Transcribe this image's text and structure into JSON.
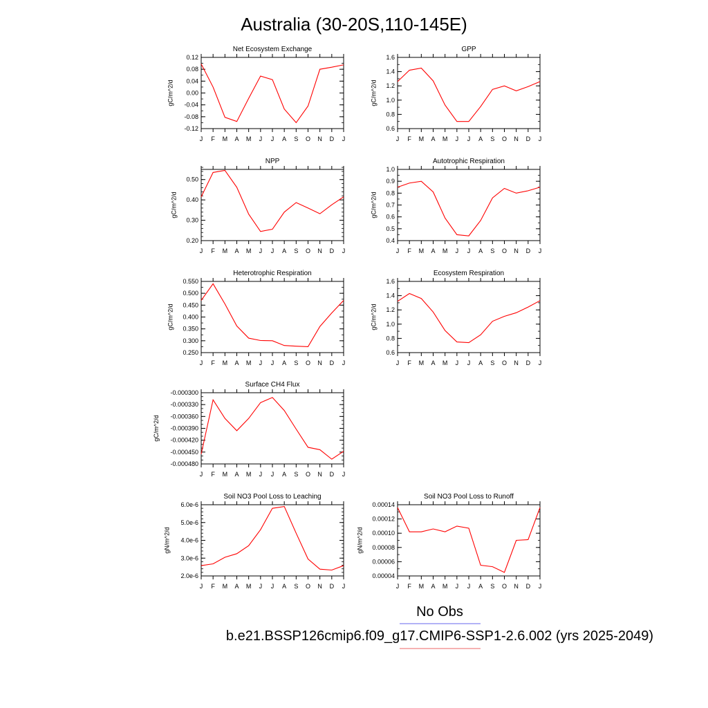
{
  "page": {
    "title": "Australia (30-20S,110-145E)",
    "legend": {
      "items": [
        {
          "label": "No Obs",
          "color": "#6666ee"
        },
        {
          "label": "b.e21.BSSP126cmip6.f09_g17.CMIP6-SSP1-2.6.002 (yrs 2025-2049)",
          "color": "#ee6666"
        }
      ]
    }
  },
  "chart_data": [
    {
      "type": "line",
      "title": "Net Ecosystem Exchange",
      "xlabel": "",
      "ylabel": "gC/m^2/d",
      "categories": [
        "J",
        "F",
        "M",
        "A",
        "M",
        "J",
        "J",
        "A",
        "S",
        "O",
        "N",
        "D",
        "J"
      ],
      "ylim": [
        -0.12,
        0.12
      ],
      "yticks": [
        -0.12,
        -0.08,
        -0.04,
        0.0,
        0.04,
        0.08,
        0.12
      ],
      "ytick_labels": [
        "-0.12",
        "-0.08",
        "-0.04",
        "0.00",
        "0.04",
        "0.08",
        "0.12"
      ],
      "minor_step": 0.02,
      "series": [
        {
          "color": "#ff0000",
          "values": [
            0.098,
            0.02,
            -0.082,
            -0.096,
            -0.018,
            0.057,
            0.045,
            -0.054,
            -0.1,
            -0.044,
            0.08,
            0.087,
            0.095
          ]
        }
      ]
    },
    {
      "type": "line",
      "title": "GPP",
      "xlabel": "",
      "ylabel": "gC/m^2/d",
      "categories": [
        "J",
        "F",
        "M",
        "A",
        "M",
        "J",
        "J",
        "A",
        "S",
        "O",
        "N",
        "D",
        "J"
      ],
      "ylim": [
        0.6,
        1.6
      ],
      "yticks": [
        0.6,
        0.8,
        1.0,
        1.2,
        1.4,
        1.6
      ],
      "ytick_labels": [
        "0.6",
        "0.8",
        "1.0",
        "1.2",
        "1.4",
        "1.6"
      ],
      "minor_step": 0.1,
      "series": [
        {
          "color": "#ff0000",
          "values": [
            1.26,
            1.42,
            1.45,
            1.27,
            0.93,
            0.7,
            0.7,
            0.91,
            1.15,
            1.2,
            1.13,
            1.19,
            1.26
          ]
        }
      ]
    },
    {
      "type": "line",
      "title": "NPP",
      "xlabel": "",
      "ylabel": "gC/m^2/d",
      "categories": [
        "J",
        "F",
        "M",
        "A",
        "M",
        "J",
        "J",
        "A",
        "S",
        "O",
        "N",
        "D",
        "J"
      ],
      "ylim": [
        0.2,
        0.55
      ],
      "yticks": [
        0.2,
        0.3,
        0.4,
        0.5
      ],
      "ytick_labels": [
        "0.20",
        "0.30",
        "0.40",
        "0.50"
      ],
      "minor_step": 0.02,
      "series": [
        {
          "color": "#ff0000",
          "values": [
            0.415,
            0.535,
            0.545,
            0.462,
            0.33,
            0.245,
            0.256,
            0.34,
            0.387,
            0.36,
            0.332,
            0.376,
            0.415
          ]
        }
      ]
    },
    {
      "type": "line",
      "title": "Autotrophic Respiration",
      "xlabel": "",
      "ylabel": "gC/m^2/d",
      "categories": [
        "J",
        "F",
        "M",
        "A",
        "M",
        "J",
        "J",
        "A",
        "S",
        "O",
        "N",
        "D",
        "J"
      ],
      "ylim": [
        0.4,
        1.0
      ],
      "yticks": [
        0.4,
        0.5,
        0.6,
        0.7,
        0.8,
        0.9,
        1.0
      ],
      "ytick_labels": [
        "0.4",
        "0.5",
        "0.6",
        "0.7",
        "0.8",
        "0.9",
        "1.0"
      ],
      "minor_step": 0.05,
      "series": [
        {
          "color": "#ff0000",
          "values": [
            0.85,
            0.885,
            0.9,
            0.81,
            0.59,
            0.45,
            0.44,
            0.57,
            0.76,
            0.84,
            0.8,
            0.82,
            0.85
          ]
        }
      ]
    },
    {
      "type": "line",
      "title": "Heterotrophic Respiration",
      "xlabel": "",
      "ylabel": "gC/m^2/d",
      "categories": [
        "J",
        "F",
        "M",
        "A",
        "M",
        "J",
        "J",
        "A",
        "S",
        "O",
        "N",
        "D",
        "J"
      ],
      "ylim": [
        0.25,
        0.55
      ],
      "yticks": [
        0.25,
        0.3,
        0.35,
        0.4,
        0.45,
        0.5,
        0.55
      ],
      "ytick_labels": [
        "0.250",
        "0.300",
        "0.350",
        "0.400",
        "0.450",
        "0.500",
        "0.550"
      ],
      "minor_step": 0.025,
      "series": [
        {
          "color": "#ff0000",
          "values": [
            0.47,
            0.54,
            0.455,
            0.362,
            0.311,
            0.301,
            0.3,
            0.28,
            0.277,
            0.275,
            0.36,
            0.417,
            0.47
          ]
        }
      ]
    },
    {
      "type": "line",
      "title": "Ecosystem Respiration",
      "xlabel": "",
      "ylabel": "gC/m^2/d",
      "categories": [
        "J",
        "F",
        "M",
        "A",
        "M",
        "J",
        "J",
        "A",
        "S",
        "O",
        "N",
        "D",
        "J"
      ],
      "ylim": [
        0.6,
        1.6
      ],
      "yticks": [
        0.6,
        0.8,
        1.0,
        1.2,
        1.4,
        1.6
      ],
      "ytick_labels": [
        "0.6",
        "0.8",
        "1.0",
        "1.2",
        "1.4",
        "1.6"
      ],
      "minor_step": 0.1,
      "series": [
        {
          "color": "#ff0000",
          "values": [
            1.32,
            1.43,
            1.36,
            1.17,
            0.91,
            0.75,
            0.74,
            0.85,
            1.04,
            1.11,
            1.16,
            1.24,
            1.33
          ]
        }
      ]
    },
    {
      "type": "line",
      "title": "Surface CH4 Flux",
      "xlabel": "",
      "ylabel": "gC/m^2/d",
      "categories": [
        "J",
        "F",
        "M",
        "A",
        "M",
        "J",
        "J",
        "A",
        "S",
        "O",
        "N",
        "D",
        "J"
      ],
      "ylim": [
        -0.00048,
        -0.0003
      ],
      "yticks": [
        -0.00048,
        -0.00045,
        -0.00042,
        -0.00039,
        -0.00036,
        -0.00033,
        -0.0003
      ],
      "ytick_labels": [
        "-0.000480",
        "-0.000450",
        "-0.000420",
        "-0.000390",
        "-0.000360",
        "-0.000330",
        "-0.000300"
      ],
      "minor_step": 1e-05,
      "series": [
        {
          "color": "#ff0000",
          "values": [
            -0.000455,
            -0.000318,
            -0.000365,
            -0.000396,
            -0.000365,
            -0.000325,
            -0.000312,
            -0.000345,
            -0.000392,
            -0.000438,
            -0.000444,
            -0.000468,
            -0.000448
          ]
        }
      ]
    },
    {
      "type": "line",
      "title": "Soil NO3 Pool Loss to Leaching",
      "xlabel": "",
      "ylabel": "gN/m^2/d",
      "categories": [
        "J",
        "F",
        "M",
        "A",
        "M",
        "J",
        "J",
        "A",
        "S",
        "O",
        "N",
        "D",
        "J"
      ],
      "ylim": [
        2e-06,
        6e-06
      ],
      "yticks": [
        2e-06,
        3e-06,
        4e-06,
        5e-06,
        6e-06
      ],
      "ytick_labels": [
        "2.0e-6",
        "3.0e-6",
        "4.0e-6",
        "5.0e-6",
        "6.0e-6"
      ],
      "minor_step": 2e-07,
      "series": [
        {
          "color": "#ff0000",
          "values": [
            2.58e-06,
            2.68e-06,
            3.05e-06,
            3.25e-06,
            3.7e-06,
            4.6e-06,
            5.8e-06,
            5.9e-06,
            4.4e-06,
            2.95e-06,
            2.38e-06,
            2.33e-06,
            2.58e-06
          ]
        }
      ]
    },
    {
      "type": "line",
      "title": "Soil NO3 Pool Loss to Runoff",
      "xlabel": "",
      "ylabel": "gN/m^2/d",
      "categories": [
        "J",
        "F",
        "M",
        "A",
        "M",
        "J",
        "J",
        "A",
        "S",
        "O",
        "N",
        "D",
        "J"
      ],
      "ylim": [
        4e-05,
        0.00014
      ],
      "yticks": [
        4e-05,
        6e-05,
        8e-05,
        0.0001,
        0.00012,
        0.00014
      ],
      "ytick_labels": [
        "0.00004",
        "0.00006",
        "0.00008",
        "0.00010",
        "0.00012",
        "0.00014"
      ],
      "minor_step": 1e-05,
      "series": [
        {
          "color": "#ff0000",
          "values": [
            0.000136,
            0.000102,
            0.000102,
            0.000106,
            0.000102,
            0.00011,
            0.000107,
            5.5e-05,
            5.3e-05,
            4.5e-05,
            9e-05,
            9.1e-05,
            0.000136
          ]
        }
      ]
    }
  ]
}
